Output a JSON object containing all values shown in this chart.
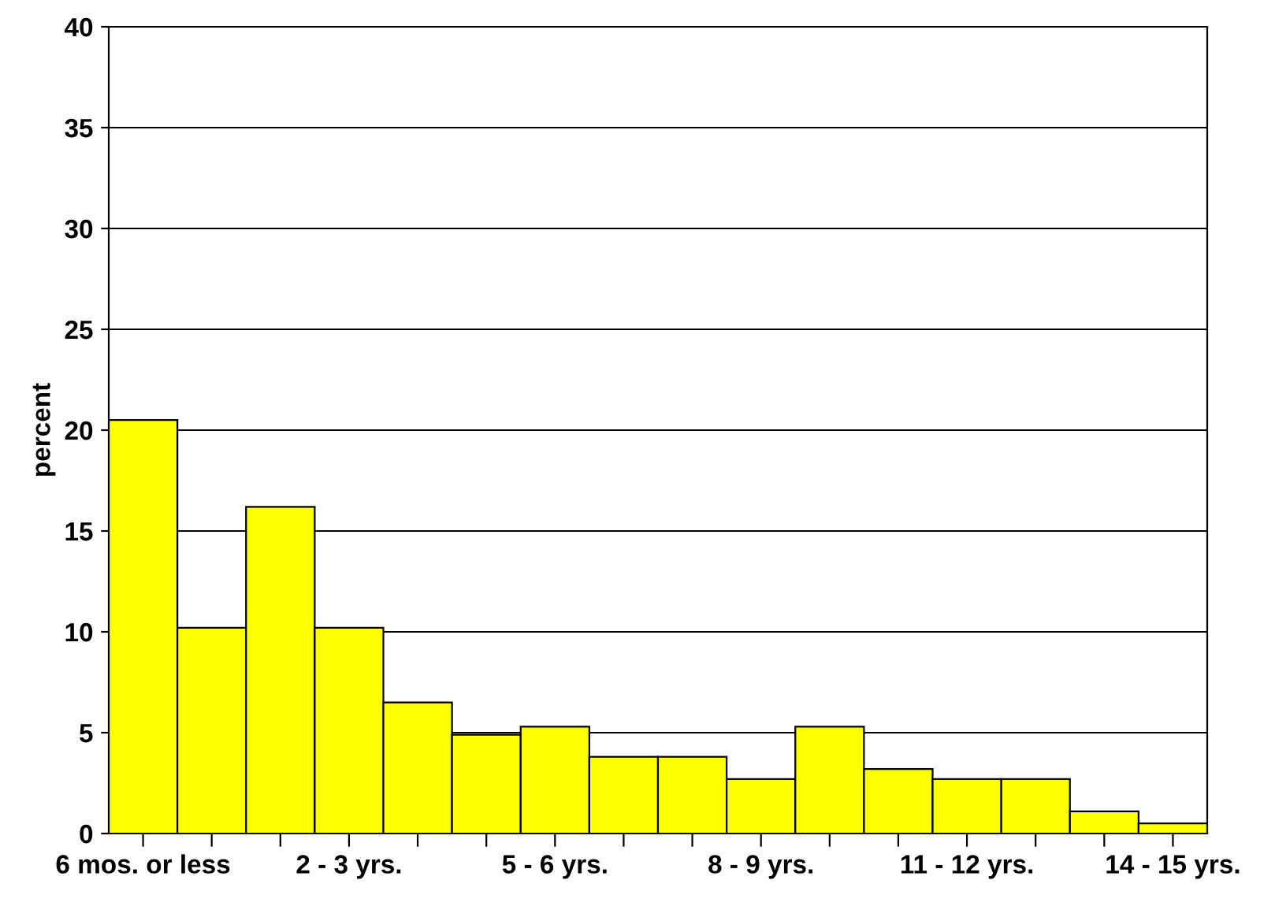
{
  "chart_data": {
    "type": "bar",
    "ylabel": "percent",
    "categories": [
      "6 mos. or less",
      null,
      null,
      "2 - 3 yrs.",
      null,
      null,
      "5 - 6 yrs.",
      null,
      null,
      "8 - 9 yrs.",
      null,
      null,
      "11 - 12 yrs.",
      null,
      null,
      "14 - 15 yrs."
    ],
    "values": [
      20.5,
      10.2,
      16.2,
      10.2,
      6.5,
      4.9,
      5.3,
      3.8,
      3.8,
      2.7,
      5.3,
      3.2,
      2.7,
      2.7,
      1.1,
      0.5
    ],
    "color": "#ffff00",
    "ylim": [
      0,
      40
    ],
    "yticks": [
      0,
      5,
      10,
      15,
      20,
      25,
      30,
      35,
      40
    ],
    "grid": "y"
  }
}
